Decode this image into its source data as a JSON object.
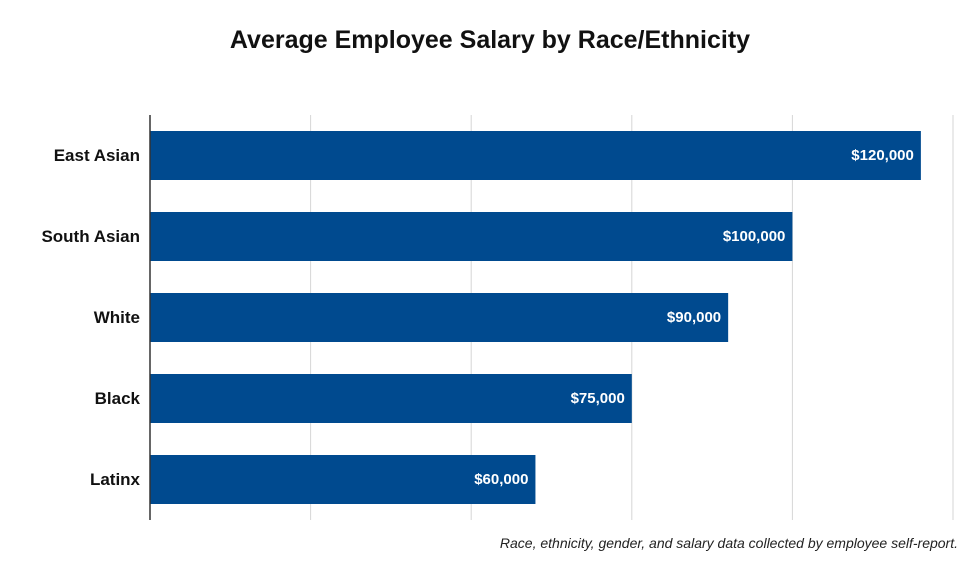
{
  "chart_data": {
    "type": "bar",
    "orientation": "horizontal",
    "title": "Average Employee Salary by Race/Ethnicity",
    "categories": [
      "East Asian",
      "South Asian",
      "White",
      "Black",
      "Latinx"
    ],
    "values": [
      120000,
      100000,
      90000,
      75000,
      60000
    ],
    "data_labels": [
      "$120,000",
      "$100,000",
      "$90,000",
      "$75,000",
      "$60,000"
    ],
    "xlim": [
      0,
      125000
    ],
    "x_gridlines": [
      0,
      25000,
      50000,
      75000,
      100000,
      125000
    ],
    "grid": true,
    "legend": "none",
    "bar_color": "#004a8f",
    "label_color": "#ffffff",
    "footnote": "Race, ethnicity, gender, and salary data collected by employee self-report."
  }
}
